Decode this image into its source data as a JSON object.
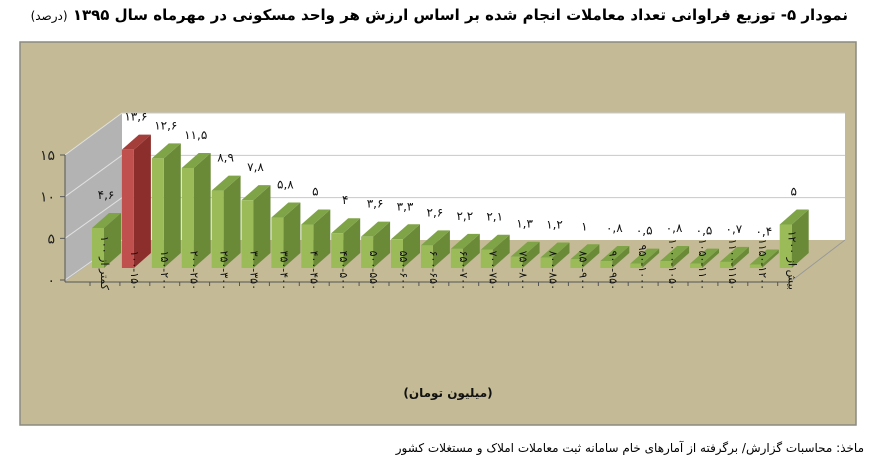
{
  "title": "نمودار ۵- توزیع فراوانی تعداد معاملات انجام شده بر اساس ارزش هر واحد مسکونی در مهرماه سال ۱۳۹۵",
  "title_unit": "(درصد)",
  "source": "ماخذ: محاسبات گزارش/ برگرفته از آمارهای خام سامانه ثبت معاملات املاک و مستغلات کشور",
  "colors": {
    "background": "#c4bb96",
    "bar": "#9bbb59",
    "bar_side": "#6b8a38",
    "bar_top": "#7fa447",
    "highlight": "#c0504d",
    "highlight_side": "#8c2f2c",
    "wall": "#b3b3b3",
    "plot": "#ffffff"
  },
  "chart_data": {
    "type": "bar",
    "style": "3d",
    "xlabel": "(میلیون تومان)",
    "ylabel": "",
    "ylim": [
      0,
      15
    ],
    "yticks": [
      "۰",
      "۵",
      "۱۰",
      "۱۵"
    ],
    "grid": true,
    "highlight_index": 1,
    "categories": [
      "کمتر از ۱۰۰",
      "۱۰۰-۱۵۰",
      "۱۵۰-۲۰۰",
      "۲۰۰-۲۵۰",
      "۲۵۰-۳۰۰",
      "۳۰۰-۳۵۰",
      "۳۵۰-۴۰۰",
      "۴۰۰-۴۵۰",
      "۴۵۰-۵۰۰",
      "۵۰۰-۵۵۰",
      "۵۵۰-۶۰۰",
      "۶۰۰-۶۵۰",
      "۶۵۰-۷۰۰",
      "۷۰۰-۷۵۰",
      "۷۵۰-۸۰۰",
      "۸۰۰-۸۵۰",
      "۸۵۰-۹۰۰",
      "۹۰۰-۹۵۰",
      "۹۵۰-۱۰۰۰",
      "۱۰۰۰-۱۰۵۰",
      "۱۰۵۰-۱۱۰۰",
      "۱۱۰۰-۱۱۵۰",
      "۱۱۵۰-۱۲۰۰",
      "بیش از ۱۲۰۰"
    ],
    "values": [
      4.6,
      13.6,
      12.6,
      11.5,
      8.9,
      7.8,
      5.8,
      5,
      4,
      3.6,
      3.3,
      2.6,
      2.2,
      2.1,
      1.3,
      1.2,
      1,
      0.8,
      0.5,
      0.8,
      0.5,
      0.7,
      0.4,
      5
    ],
    "data_labels": [
      "۴,۶",
      "۱۳,۶",
      "۱۲,۶",
      "۱۱,۵",
      "۸,۹",
      "۷,۸",
      "۵,۸",
      "۵",
      "۴",
      "۳,۶",
      "۳,۳",
      "۲,۶",
      "۲,۲",
      "۲,۱",
      "۱,۳",
      "۱,۲",
      "۱",
      "۰,۸",
      "۰,۵",
      "۰,۸",
      "۰,۵",
      "۰,۷",
      "۰,۴",
      "۵"
    ]
  }
}
